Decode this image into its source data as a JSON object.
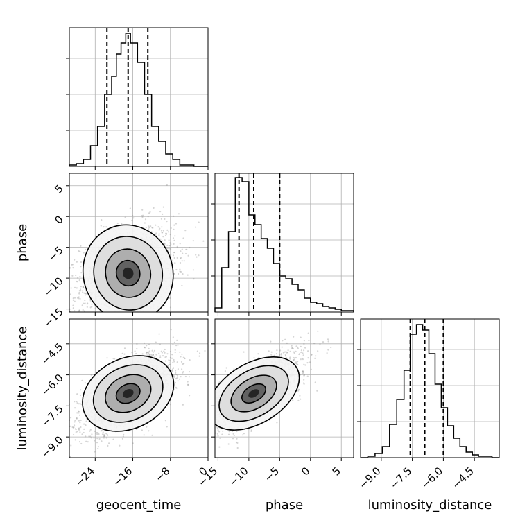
{
  "chart_data": {
    "type": "corner",
    "parameters": [
      "geocent_time",
      "phase",
      "luminosity_distance"
    ],
    "axis_labels": {
      "x": [
        "geocent_time",
        "phase",
        "luminosity_distance"
      ],
      "y": [
        "phase",
        "luminosity_distance"
      ]
    },
    "ranges": {
      "geocent_time": [
        -29.5,
        0
      ],
      "phase": [
        -15.5,
        7
      ],
      "luminosity_distance": [
        -10.0,
        -3.3
      ]
    },
    "ticks": {
      "geocent_time": {
        "values": [
          -24,
          -16,
          -8,
          0
        ],
        "labels": [
          "−24",
          "−16",
          "−8",
          "0"
        ]
      },
      "phase": {
        "values": [
          -15,
          -10,
          -5,
          0,
          5
        ],
        "labels": [
          "−15",
          "−10",
          "−5",
          "0",
          "5"
        ]
      },
      "luminosity_distance": {
        "values": [
          -9.0,
          -7.5,
          -6.0,
          -4.5
        ],
        "labels": [
          "−9.0",
          "−7.5",
          "−6.0",
          "−4.5"
        ]
      }
    },
    "quantiles": {
      "geocent_time": [
        -21.5,
        -17.0,
        -12.8
      ],
      "phase": [
        -11.6,
        -9.2,
        -5.0
      ],
      "luminosity_distance": [
        -7.6,
        -6.9,
        -6.0
      ]
    },
    "histograms": {
      "geocent_time": {
        "edges": [
          -29.5,
          -28.0,
          -26.5,
          -25.0,
          -23.5,
          -22.0,
          -20.5,
          -19.5,
          -18.5,
          -17.5,
          -16.5,
          -15.0,
          -13.5,
          -12.0,
          -10.5,
          -9.0,
          -7.5,
          -6.0,
          -4.5,
          -3.0,
          -1.5,
          0
        ],
        "counts": [
          0.01,
          0.02,
          0.05,
          0.15,
          0.29,
          0.52,
          0.65,
          0.81,
          0.89,
          0.96,
          0.89,
          0.75,
          0.52,
          0.29,
          0.18,
          0.09,
          0.05,
          0.01,
          0.01,
          0.0,
          0.0
        ]
      },
      "phase": {
        "edges": [
          -15.5,
          -14.4,
          -13.3,
          -12.2,
          -11.1,
          -10.0,
          -9.0,
          -8.0,
          -7.0,
          -6.0,
          -5.0,
          -4.0,
          -3.0,
          -2.0,
          -1.0,
          0.0,
          1.0,
          2.0,
          3.0,
          4.0,
          5.0,
          6.0,
          7.0
        ],
        "counts": [
          0.03,
          0.32,
          0.58,
          0.97,
          0.94,
          0.7,
          0.63,
          0.53,
          0.46,
          0.35,
          0.26,
          0.24,
          0.2,
          0.16,
          0.1,
          0.07,
          0.06,
          0.04,
          0.03,
          0.02,
          0.01,
          0.01
        ]
      },
      "luminosity_distance": {
        "edges": [
          -10.0,
          -9.65,
          -9.3,
          -8.95,
          -8.6,
          -8.25,
          -7.9,
          -7.6,
          -7.3,
          -7.0,
          -6.7,
          -6.4,
          -6.1,
          -5.8,
          -5.5,
          -5.2,
          -4.9,
          -4.6,
          -4.3,
          -4.0,
          -3.65,
          -3.3
        ],
        "counts": [
          0.0,
          0.01,
          0.03,
          0.08,
          0.24,
          0.42,
          0.63,
          0.89,
          0.96,
          0.92,
          0.75,
          0.53,
          0.36,
          0.23,
          0.14,
          0.08,
          0.04,
          0.02,
          0.01,
          0.01,
          0.0
        ]
      }
    },
    "correlations": {
      "phase_vs_geocent_time": 0.3,
      "luminosity_distance_vs_geocent_time": 0.6,
      "luminosity_distance_vs_phase": 0.75
    },
    "grid": true
  }
}
